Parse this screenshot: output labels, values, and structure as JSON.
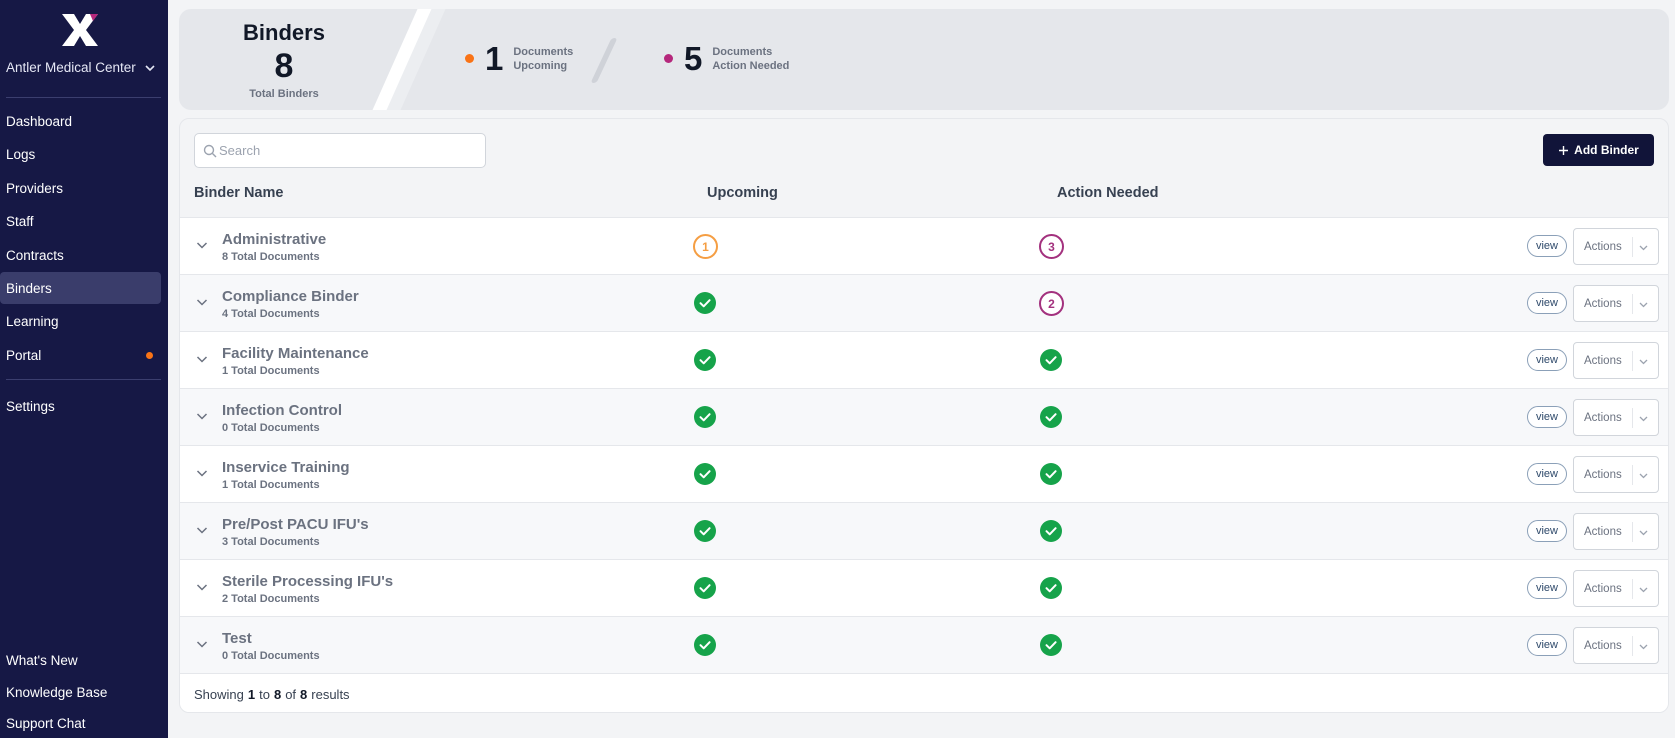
{
  "sidebar": {
    "org_name": "Antler Medical Center",
    "nav": [
      {
        "label": "Dashboard",
        "active": false
      },
      {
        "label": "Logs",
        "active": false
      },
      {
        "label": "Providers",
        "active": false
      },
      {
        "label": "Staff",
        "active": false
      },
      {
        "label": "Contracts",
        "active": false
      },
      {
        "label": "Binders",
        "active": true
      },
      {
        "label": "Learning",
        "active": false
      },
      {
        "label": "Portal",
        "active": false,
        "dot": true
      }
    ],
    "settings": "Settings",
    "bottom": [
      "What's New",
      "Knowledge Base",
      "Support Chat"
    ]
  },
  "summary": {
    "title": "Binders",
    "total": "8",
    "total_label": "Total Binders",
    "upcoming": {
      "count": "1",
      "line1": "Documents",
      "line2": "Upcoming",
      "color": "#f97316"
    },
    "action_needed": {
      "count": "5",
      "line1": "Documents",
      "line2": "Action Needed",
      "color": "#b5287c"
    }
  },
  "toolbar": {
    "search_placeholder": "Search",
    "add_binder": "Add Binder"
  },
  "table": {
    "headers": {
      "name": "Binder Name",
      "upcoming": "Upcoming",
      "action": "Action Needed"
    },
    "view_label": "view",
    "actions_label": "Actions",
    "rows": [
      {
        "name": "Administrative",
        "docs": "8 Total Documents",
        "upcoming": "1",
        "action": "3"
      },
      {
        "name": "Compliance Binder",
        "docs": "4 Total Documents",
        "upcoming": "ok",
        "action": "2"
      },
      {
        "name": "Facility Maintenance",
        "docs": "1 Total Documents",
        "upcoming": "ok",
        "action": "ok"
      },
      {
        "name": "Infection Control",
        "docs": "0 Total Documents",
        "upcoming": "ok",
        "action": "ok"
      },
      {
        "name": "Inservice Training",
        "docs": "1 Total Documents",
        "upcoming": "ok",
        "action": "ok"
      },
      {
        "name": "Pre/Post PACU IFU's",
        "docs": "3 Total Documents",
        "upcoming": "ok",
        "action": "ok"
      },
      {
        "name": "Sterile Processing IFU's",
        "docs": "2 Total Documents",
        "upcoming": "ok",
        "action": "ok"
      },
      {
        "name": "Test",
        "docs": "0 Total Documents",
        "upcoming": "ok",
        "action": "ok"
      }
    ]
  },
  "pagination": {
    "prefix": "Showing",
    "from": "1",
    "to_word": "to",
    "to": "8",
    "of_word": "of",
    "total": "8",
    "suffix": "results"
  },
  "colors": {
    "sidebar": "#161845",
    "check": "#16a34a",
    "upcoming_ring": "#f59e43",
    "action_ring": "#a3317e",
    "accent_button": "#111439"
  }
}
